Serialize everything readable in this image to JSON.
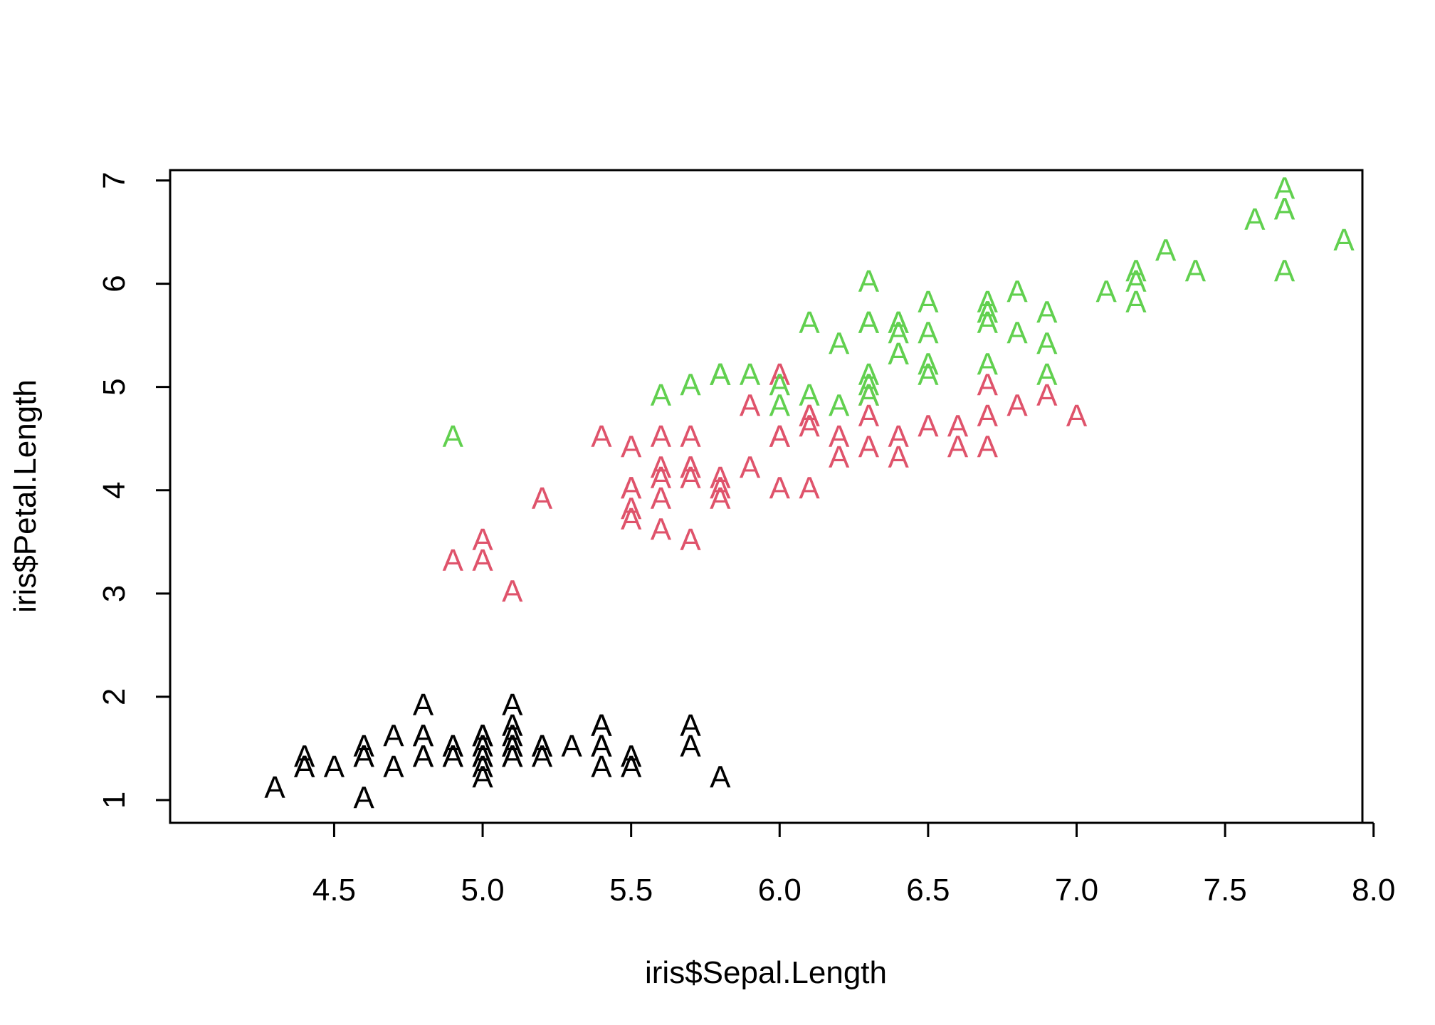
{
  "chart_data": {
    "type": "scatter",
    "title": "",
    "xlabel": "iris$Sepal.Length",
    "ylabel": "iris$Petal.Length",
    "xlim": [
      4.3,
      7.9
    ],
    "ylim": [
      1.0,
      6.9
    ],
    "x_ticks": [
      4.5,
      5.0,
      5.5,
      6.0,
      6.5,
      7.0,
      7.5,
      8.0
    ],
    "y_ticks": [
      1,
      2,
      3,
      4,
      5,
      6,
      7
    ],
    "x_tick_labels": [
      "4.5",
      "5.0",
      "5.5",
      "6.0",
      "6.5",
      "7.0",
      "7.5",
      "8.0"
    ],
    "y_tick_labels": [
      "1",
      "2",
      "3",
      "4",
      "5",
      "6",
      "7"
    ],
    "marker": "A",
    "grid": false,
    "legend": "none",
    "series": [
      {
        "color": "#000000",
        "x": [
          5.1,
          4.9,
          4.7,
          4.6,
          5.0,
          5.4,
          4.6,
          5.0,
          4.4,
          4.9,
          5.4,
          4.8,
          4.8,
          4.3,
          5.8,
          5.7,
          5.4,
          5.1,
          5.7,
          5.1,
          5.4,
          5.1,
          4.6,
          5.1,
          4.8,
          5.0,
          5.0,
          5.2,
          5.2,
          4.7,
          4.8,
          5.4,
          5.2,
          5.5,
          4.9,
          5.0,
          5.5,
          4.9,
          4.4,
          5.1,
          5.0,
          4.5,
          4.4,
          5.0,
          5.1,
          4.8,
          5.1,
          4.6,
          5.3,
          5.0
        ],
        "y": [
          1.4,
          1.4,
          1.3,
          1.5,
          1.4,
          1.7,
          1.4,
          1.5,
          1.4,
          1.5,
          1.5,
          1.6,
          1.4,
          1.1,
          1.2,
          1.5,
          1.3,
          1.4,
          1.7,
          1.5,
          1.7,
          1.5,
          1.0,
          1.7,
          1.9,
          1.6,
          1.6,
          1.5,
          1.4,
          1.6,
          1.6,
          1.5,
          1.5,
          1.4,
          1.5,
          1.2,
          1.3,
          1.4,
          1.3,
          1.5,
          1.3,
          1.3,
          1.3,
          1.6,
          1.9,
          1.4,
          1.6,
          1.4,
          1.5,
          1.4
        ]
      },
      {
        "color": "#DF536B",
        "x": [
          7.0,
          6.4,
          6.9,
          5.5,
          6.5,
          5.7,
          6.3,
          4.9,
          6.6,
          5.2,
          5.0,
          5.9,
          6.0,
          6.1,
          5.6,
          6.7,
          5.6,
          5.8,
          6.2,
          5.6,
          5.9,
          6.1,
          6.3,
          6.1,
          6.4,
          6.6,
          6.8,
          6.7,
          6.0,
          5.7,
          5.5,
          5.5,
          5.8,
          6.0,
          5.4,
          6.0,
          6.7,
          6.3,
          5.6,
          5.5,
          5.5,
          6.1,
          5.8,
          5.0,
          5.6,
          5.7,
          5.7,
          6.2,
          5.1,
          5.7
        ],
        "y": [
          4.7,
          4.5,
          4.9,
          4.0,
          4.6,
          4.5,
          4.7,
          3.3,
          4.6,
          3.9,
          3.5,
          4.2,
          4.0,
          4.7,
          3.6,
          4.4,
          4.5,
          4.1,
          4.5,
          3.9,
          4.8,
          4.0,
          4.9,
          4.7,
          4.3,
          4.4,
          4.8,
          5.0,
          4.5,
          3.5,
          3.8,
          3.7,
          3.9,
          5.1,
          4.5,
          4.5,
          4.7,
          4.4,
          4.1,
          4.0,
          4.4,
          4.6,
          4.0,
          3.3,
          4.2,
          4.2,
          4.2,
          4.3,
          3.0,
          4.1
        ]
      },
      {
        "color": "#61D04F",
        "x": [
          6.3,
          5.8,
          7.1,
          6.3,
          6.5,
          7.6,
          4.9,
          7.3,
          6.7,
          7.2,
          6.5,
          6.4,
          6.8,
          5.7,
          5.8,
          6.4,
          6.5,
          7.7,
          7.7,
          6.0,
          6.9,
          5.6,
          7.7,
          6.3,
          6.7,
          7.2,
          6.2,
          6.1,
          6.4,
          7.2,
          7.4,
          7.9,
          6.4,
          6.3,
          6.1,
          7.7,
          6.3,
          6.4,
          6.0,
          6.9,
          6.7,
          6.9,
          5.8,
          6.8,
          6.7,
          6.7,
          6.3,
          6.5,
          6.2,
          5.9
        ],
        "y": [
          6.0,
          5.1,
          5.9,
          5.6,
          5.8,
          6.6,
          4.5,
          6.3,
          5.8,
          6.1,
          5.1,
          5.3,
          5.5,
          5.0,
          5.1,
          5.3,
          5.5,
          6.7,
          6.9,
          5.0,
          5.7,
          4.9,
          6.7,
          4.9,
          5.7,
          6.0,
          4.8,
          4.9,
          5.6,
          5.8,
          6.1,
          6.4,
          5.6,
          5.1,
          5.6,
          6.1,
          5.6,
          5.5,
          4.8,
          5.4,
          5.6,
          5.1,
          5.1,
          5.9,
          5.7,
          5.2,
          5.0,
          5.2,
          5.4,
          5.1
        ]
      }
    ]
  }
}
